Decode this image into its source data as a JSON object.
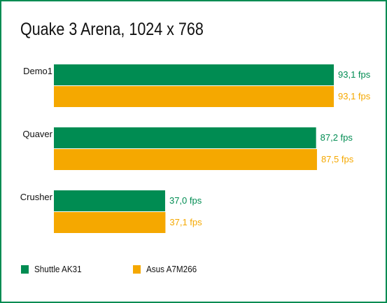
{
  "chart_data": {
    "type": "bar",
    "orientation": "horizontal",
    "title": "Quake 3 Arena, 1024 x 768",
    "categories": [
      "Demo1",
      "Quaver",
      "Crusher"
    ],
    "unit": "fps",
    "series": [
      {
        "name": "Shuttle AK31",
        "color": "#008c52",
        "values": [
          93.1,
          87.2,
          37.0
        ],
        "labels": [
          "93,1 fps",
          "87,2 fps",
          "37,0 fps"
        ]
      },
      {
        "name": "Asus A7M266",
        "color": "#f5a800",
        "values": [
          93.1,
          87.5,
          37.1
        ],
        "labels": [
          "93,1 fps",
          "87,5 fps",
          "37,1 fps"
        ]
      }
    ],
    "xlim": [
      0,
      93.1
    ],
    "grid": false,
    "axes_visible": false,
    "legend_position": "bottom-left"
  }
}
